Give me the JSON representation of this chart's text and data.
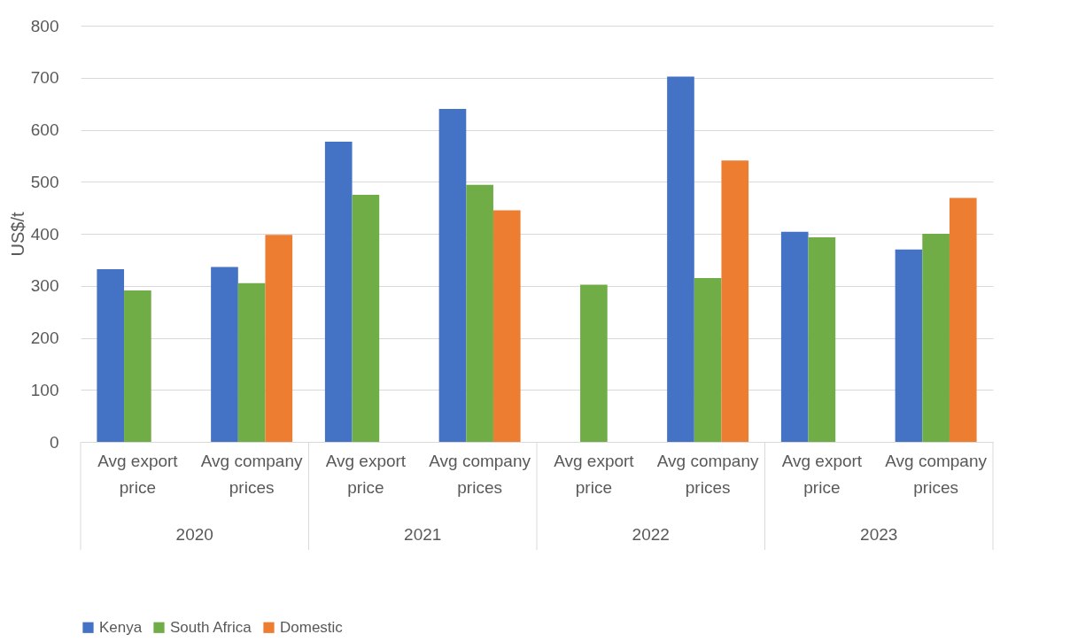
{
  "chart_data": {
    "type": "bar",
    "ylabel": "US$/t",
    "categories": [
      "Avg export price",
      "Avg company prices",
      "Avg export price",
      "Avg company prices",
      "Avg export price",
      "Avg company prices",
      "Avg export price",
      "Avg company prices"
    ],
    "annotations": [
      "2020",
      "2021",
      "2022",
      "2023"
    ],
    "series": [
      {
        "name": "Kenya",
        "color": "#4472c4",
        "values": [
          332,
          336,
          577,
          640,
          null,
          702,
          404,
          370
        ]
      },
      {
        "name": "South Africa",
        "color": "#70ad47",
        "values": [
          291,
          305,
          475,
          494,
          302,
          315,
          393,
          400
        ]
      },
      {
        "name": "Domestic",
        "color": "#ed7d31",
        "values": [
          null,
          398,
          null,
          445,
          null,
          541,
          null,
          469
        ]
      }
    ],
    "ylim": [
      0,
      800
    ],
    "yticks": [
      0,
      100,
      200,
      300,
      400,
      500,
      600,
      700,
      800
    ],
    "grid": "y",
    "legend": "bottom"
  }
}
